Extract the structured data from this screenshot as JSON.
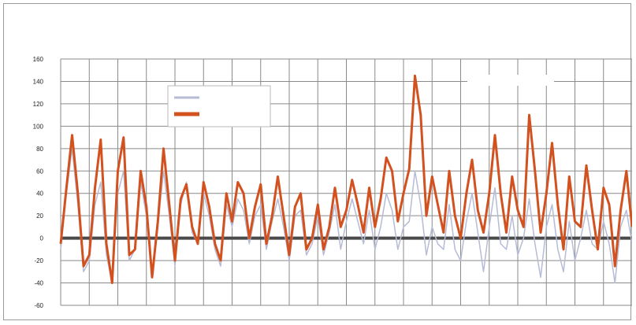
{
  "chart_data": {
    "type": "line",
    "title": "",
    "xlabel": "",
    "ylabel": "",
    "ylim": [
      -60,
      160
    ],
    "yticks": [
      -60,
      -40,
      -20,
      0,
      20,
      40,
      60,
      80,
      100,
      120,
      140,
      160
    ],
    "xlim": [
      0,
      100
    ],
    "xticks": [
      {
        "pos": 0,
        "label": ""
      },
      {
        "pos": 31,
        "label": ""
      },
      {
        "pos": 62,
        "label": ""
      },
      {
        "pos": 95,
        "label": ""
      }
    ],
    "grid": true,
    "legend_position": "top-left",
    "annotation": {
      "text": "",
      "x": 70,
      "y": 144
    },
    "series": [
      {
        "name": "",
        "color": "#b6bbd6",
        "x": [
          0,
          1,
          2,
          3,
          4,
          5,
          6,
          7,
          8,
          9,
          10,
          11,
          12,
          13,
          14,
          15,
          16,
          17,
          18,
          19,
          20,
          21,
          22,
          23,
          24,
          25,
          26,
          27,
          28,
          29,
          30,
          31,
          32,
          33,
          34,
          35,
          36,
          37,
          38,
          39,
          40,
          41,
          42,
          43,
          44,
          45,
          46,
          47,
          48,
          49,
          50,
          51,
          52,
          53,
          54,
          55,
          56,
          57,
          58,
          59,
          60,
          61,
          62,
          63,
          64,
          65,
          66,
          67,
          68,
          69,
          70,
          71,
          72,
          73,
          74,
          75,
          76,
          77,
          78,
          79,
          80,
          81,
          82,
          83,
          84,
          85,
          86,
          87,
          88,
          89,
          90,
          91,
          92,
          93,
          94,
          95,
          96,
          97,
          98,
          99,
          100
        ],
        "values": [
          -10,
          40,
          80,
          30,
          -30,
          -20,
          30,
          50,
          -15,
          -40,
          40,
          60,
          -20,
          -10,
          50,
          20,
          -35,
          10,
          60,
          20,
          -25,
          30,
          50,
          5,
          -5,
          40,
          20,
          -10,
          -25,
          30,
          10,
          35,
          25,
          -5,
          20,
          30,
          -10,
          15,
          35,
          10,
          -20,
          20,
          25,
          -15,
          -5,
          20,
          -15,
          5,
          30,
          -10,
          15,
          35,
          15,
          -5,
          25,
          -10,
          10,
          40,
          25,
          -10,
          10,
          15,
          60,
          30,
          -15,
          10,
          -5,
          -10,
          30,
          -10,
          -20,
          15,
          40,
          5,
          -30,
          10,
          45,
          -5,
          -10,
          20,
          -15,
          0,
          35,
          -5,
          -35,
          10,
          30,
          -10,
          -30,
          15,
          -20,
          0,
          25,
          -5,
          -10,
          15,
          -5,
          -40,
          10,
          25,
          -5
        ]
      },
      {
        "name": "",
        "color": "#d2511e",
        "x": [
          0,
          1,
          2,
          3,
          4,
          5,
          6,
          7,
          8,
          9,
          10,
          11,
          12,
          13,
          14,
          15,
          16,
          17,
          18,
          19,
          20,
          21,
          22,
          23,
          24,
          25,
          26,
          27,
          28,
          29,
          30,
          31,
          32,
          33,
          34,
          35,
          36,
          37,
          38,
          39,
          40,
          41,
          42,
          43,
          44,
          45,
          46,
          47,
          48,
          49,
          50,
          51,
          52,
          53,
          54,
          55,
          56,
          57,
          58,
          59,
          60,
          61,
          62,
          63,
          64,
          65,
          66,
          67,
          68,
          69,
          70,
          71,
          72,
          73,
          74,
          75,
          76,
          77,
          78,
          79,
          80,
          81,
          82,
          83,
          84,
          85,
          86,
          87,
          88,
          89,
          90,
          91,
          92,
          93,
          94,
          95,
          96,
          97,
          98,
          99,
          100
        ],
        "values": [
          -5,
          45,
          92,
          40,
          -25,
          -15,
          45,
          88,
          -5,
          -40,
          60,
          90,
          -15,
          -10,
          60,
          28,
          -35,
          15,
          80,
          30,
          -20,
          35,
          48,
          10,
          -5,
          50,
          28,
          -5,
          -20,
          40,
          15,
          50,
          40,
          0,
          28,
          48,
          -5,
          20,
          55,
          20,
          -15,
          28,
          40,
          -10,
          0,
          30,
          -10,
          10,
          45,
          10,
          25,
          52,
          30,
          5,
          45,
          10,
          35,
          72,
          60,
          15,
          40,
          62,
          145,
          110,
          20,
          55,
          30,
          5,
          60,
          20,
          0,
          40,
          70,
          25,
          5,
          40,
          92,
          40,
          5,
          55,
          25,
          10,
          110,
          60,
          5,
          40,
          85,
          30,
          -10,
          55,
          15,
          10,
          65,
          25,
          -10,
          45,
          30,
          -25,
          25,
          60,
          10
        ]
      }
    ]
  }
}
